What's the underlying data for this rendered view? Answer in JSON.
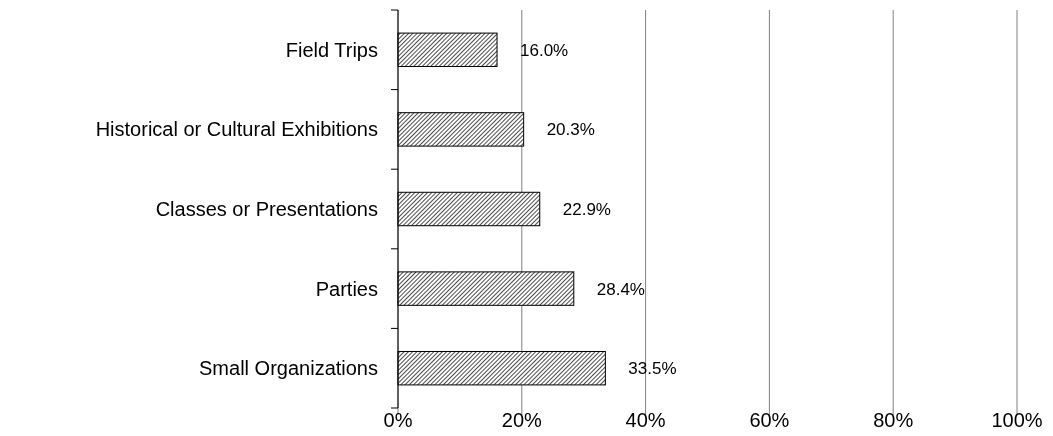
{
  "chart_data": {
    "type": "bar",
    "orientation": "horizontal",
    "categories": [
      "Field Trips",
      "Historical or Cultural Exhibitions",
      "Classes or Presentations",
      "Parties",
      "Small Organizations"
    ],
    "values": [
      16.0,
      20.3,
      22.9,
      28.4,
      33.5
    ],
    "value_labels": [
      "16.0%",
      "20.3%",
      "22.9%",
      "28.4%",
      "33.5%"
    ],
    "color": "#000000",
    "xlim": [
      0,
      100
    ],
    "xticks": [
      {
        "value": 0,
        "label": "0%"
      },
      {
        "value": 20,
        "label": "20%"
      },
      {
        "value": 40,
        "label": "40%"
      },
      {
        "value": 60,
        "label": "60%"
      },
      {
        "value": 80,
        "label": "80%"
      },
      {
        "value": 100,
        "label": "100%"
      }
    ],
    "grid": "x"
  }
}
